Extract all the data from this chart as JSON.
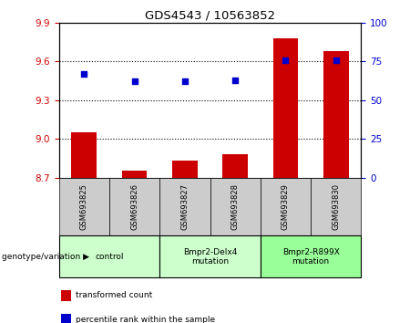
{
  "title": "GDS4543 / 10563852",
  "samples": [
    "GSM693825",
    "GSM693826",
    "GSM693827",
    "GSM693828",
    "GSM693829",
    "GSM693830"
  ],
  "bar_values": [
    9.05,
    8.755,
    8.83,
    8.88,
    9.78,
    9.68
  ],
  "scatter_values": [
    67,
    62,
    62,
    63,
    76,
    76
  ],
  "bar_color": "#cc0000",
  "scatter_color": "#0000cc",
  "ylim_left": [
    8.7,
    9.9
  ],
  "ylim_right": [
    0,
    100
  ],
  "yticks_left": [
    8.7,
    9.0,
    9.3,
    9.6,
    9.9
  ],
  "yticks_right": [
    0,
    25,
    50,
    75,
    100
  ],
  "hlines": [
    9.0,
    9.3,
    9.6
  ],
  "group_positions": [
    [
      0,
      1,
      "control"
    ],
    [
      2,
      3,
      "Bmpr2-Delx4\nmutation"
    ],
    [
      4,
      5,
      "Bmpr2-R899X\nmutation"
    ]
  ],
  "group_colors": [
    "#ccffcc",
    "#ccffcc",
    "#99ff99"
  ],
  "legend_items": [
    {
      "color": "#cc0000",
      "label": "transformed count"
    },
    {
      "color": "#0000cc",
      "label": "percentile rank within the sample"
    }
  ],
  "genotype_label": "genotype/variation",
  "tick_color_left": "#cc0000",
  "tick_color_right": "#0000cc",
  "bar_width": 0.5,
  "sample_box_color": "#cccccc",
  "figsize": [
    4.61,
    3.54
  ],
  "dpi": 100
}
